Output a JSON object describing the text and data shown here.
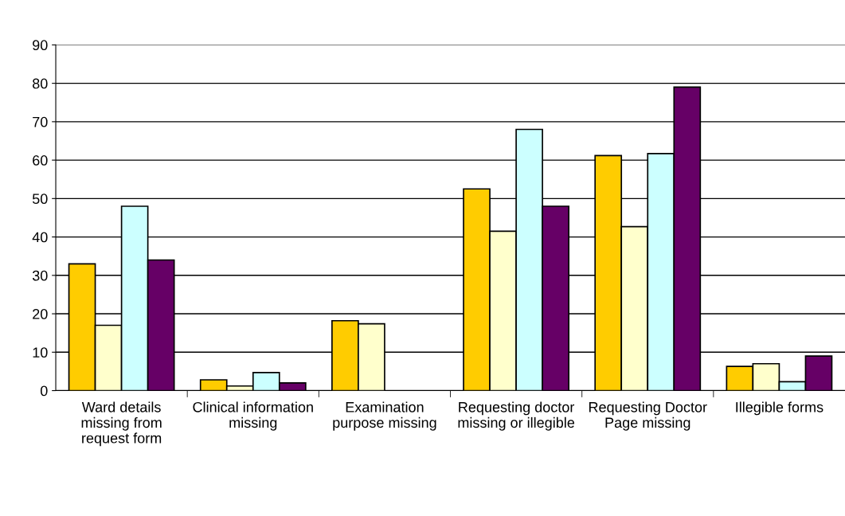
{
  "chart_data": {
    "type": "bar",
    "categories": [
      "Ward details\nmissing from\nrequest form",
      "Clinical information\nmissing",
      "Examination\npurpose missing",
      "Requesting doctor\nmissing or illegible",
      "Requesting Doctor\nPage missing",
      "Illegible forms"
    ],
    "series": [
      {
        "color": "#ffcc00",
        "values": [
          33,
          2.8,
          18.2,
          52.5,
          61.2,
          6.3
        ]
      },
      {
        "color": "#ffffcc",
        "values": [
          17,
          1.2,
          17.4,
          41.5,
          42.7,
          7
        ]
      },
      {
        "color": "#ccffff",
        "values": [
          48,
          4.7,
          null,
          68,
          61.7,
          2.3
        ]
      },
      {
        "color": "#660066",
        "values": [
          34,
          2,
          null,
          48,
          79,
          9
        ]
      }
    ],
    "ylim": [
      0,
      90
    ],
    "yticks": [
      0,
      10,
      20,
      30,
      40,
      50,
      60,
      70,
      80,
      90
    ],
    "grid": "y",
    "legend": false
  }
}
